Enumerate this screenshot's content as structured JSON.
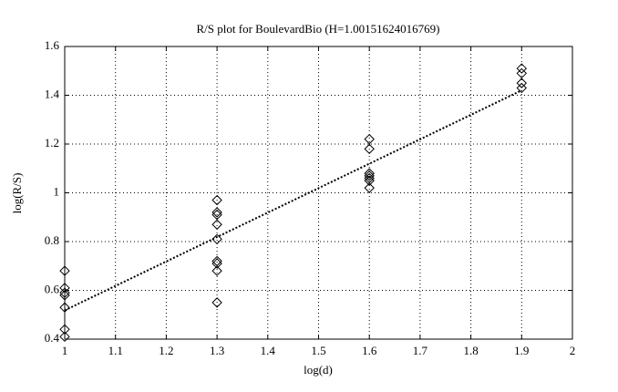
{
  "chart_data": {
    "type": "scatter",
    "title": "R/S plot for BoulevardBio (H=1.00151624016769)",
    "xlabel": "log(d)",
    "ylabel": "log(R/S)",
    "points": {
      "color": "#000000",
      "x": [
        1,
        1,
        1,
        1,
        1,
        1,
        1,
        1.3,
        1.3,
        1.3,
        1.3,
        1.3,
        1.3,
        1.3,
        1.3,
        1.3,
        1.6,
        1.6,
        1.6,
        1.6,
        1.6,
        1.6,
        1.6,
        1.9,
        1.9,
        1.9,
        1.9
      ],
      "y": [
        0.68,
        0.61,
        0.59,
        0.58,
        0.53,
        0.44,
        0.41,
        0.97,
        0.92,
        0.91,
        0.87,
        0.81,
        0.72,
        0.71,
        0.68,
        0.55,
        1.22,
        1.18,
        1.08,
        1.07,
        1.06,
        1.05,
        1.02,
        1.51,
        1.49,
        1.45,
        1.43
      ]
    },
    "fit": {
      "color": "#000000",
      "x": [
        1,
        1.9
      ],
      "y": [
        0.518,
        1.42
      ]
    },
    "xlim": [
      1,
      2
    ],
    "ylim": [
      0.4,
      1.6
    ],
    "xticks": [
      1,
      1.1,
      1.2,
      1.3,
      1.4,
      1.5,
      1.6,
      1.7,
      1.8,
      1.9,
      2
    ],
    "yticks": [
      0.4,
      0.6,
      0.8,
      1,
      1.2,
      1.4,
      1.6
    ],
    "grid": true
  }
}
